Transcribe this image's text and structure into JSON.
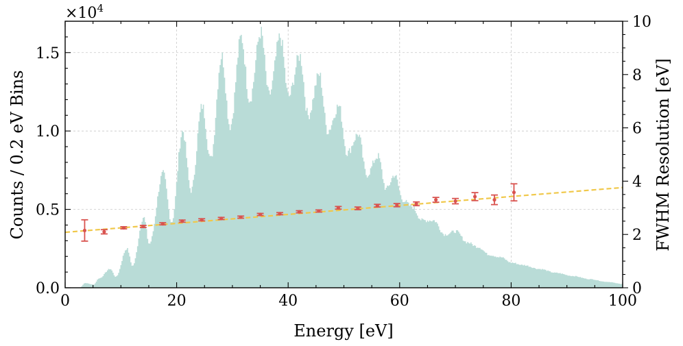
{
  "chart_data": {
    "type": "histogram+errorbar",
    "xlabel": "Energy [eV]",
    "ylabel": "Counts / 0.2 eV Bins",
    "y2label": "FWHM Resolution [eV]",
    "y_offset_label": "×10",
    "y_offset_exponent": "4",
    "xlim": [
      0,
      100
    ],
    "ylim": [
      0,
      17000
    ],
    "y2lim": [
      0,
      10
    ],
    "grid": true,
    "x_ticks": [
      0,
      20,
      40,
      60,
      80,
      100
    ],
    "y_ticks": [
      0,
      5000,
      10000,
      15000
    ],
    "y_tick_labels": [
      "0.0",
      "0.5",
      "1.0",
      "1.5"
    ],
    "y2_ticks": [
      0,
      2,
      4,
      6,
      8,
      10
    ],
    "histogram": {
      "color": "#b9dcd7",
      "bin_width": 0.2,
      "envelope": [
        [
          2.5,
          0
        ],
        [
          3.5,
          300
        ],
        [
          5,
          200
        ],
        [
          6,
          600
        ],
        [
          8,
          1200
        ],
        [
          9,
          700
        ],
        [
          11,
          2500
        ],
        [
          12,
          1400
        ],
        [
          14,
          4500
        ],
        [
          15,
          2800
        ],
        [
          17.5,
          7300
        ],
        [
          19,
          4200
        ],
        [
          21,
          10000
        ],
        [
          22.5,
          6200
        ],
        [
          24.5,
          11600
        ],
        [
          26,
          8200
        ],
        [
          28,
          14800
        ],
        [
          29.5,
          10300
        ],
        [
          31.5,
          16000
        ],
        [
          33,
          12000
        ],
        [
          35,
          16300
        ],
        [
          36.5,
          12300
        ],
        [
          38.5,
          16000
        ],
        [
          40,
          12200
        ],
        [
          42,
          14800
        ],
        [
          43.5,
          11000
        ],
        [
          45.5,
          13600
        ],
        [
          47,
          10000
        ],
        [
          49,
          11600
        ],
        [
          50.5,
          8600
        ],
        [
          52.5,
          9800
        ],
        [
          54,
          7200
        ],
        [
          56,
          8400
        ],
        [
          57.5,
          6300
        ],
        [
          59,
          7200
        ],
        [
          60.5,
          5600
        ],
        [
          62,
          5200
        ],
        [
          64,
          4300
        ],
        [
          66,
          4300
        ],
        [
          68,
          3400
        ],
        [
          70,
          3600
        ],
        [
          72,
          2900
        ],
        [
          74,
          2600
        ],
        [
          76,
          2100
        ],
        [
          78,
          1950
        ],
        [
          80,
          1600
        ],
        [
          82,
          1450
        ],
        [
          85,
          1200
        ],
        [
          88,
          950
        ],
        [
          91,
          750
        ],
        [
          94,
          550
        ],
        [
          97,
          380
        ],
        [
          100,
          240
        ]
      ]
    },
    "series": [
      {
        "type": "errorbar",
        "axis": "right",
        "color": "#d9534f",
        "x": [
          3.5,
          7,
          10.5,
          14,
          17.5,
          21,
          24.5,
          28,
          31.5,
          35,
          38.5,
          42,
          45.5,
          49,
          52.5,
          56,
          59.5,
          63,
          66.5,
          70,
          73.5,
          77,
          80.5
        ],
        "y": [
          2.15,
          2.1,
          2.25,
          2.3,
          2.4,
          2.5,
          2.55,
          2.6,
          2.65,
          2.75,
          2.78,
          2.85,
          2.88,
          3.0,
          2.98,
          3.08,
          3.1,
          3.15,
          3.3,
          3.25,
          3.42,
          3.3,
          3.58
        ],
        "yerr": [
          0.4,
          0.08,
          0.04,
          0.04,
          0.04,
          0.04,
          0.04,
          0.04,
          0.04,
          0.04,
          0.04,
          0.04,
          0.04,
          0.05,
          0.05,
          0.05,
          0.06,
          0.07,
          0.09,
          0.1,
          0.15,
          0.18,
          0.32
        ]
      },
      {
        "type": "line",
        "axis": "right",
        "style": "dashed",
        "color": "#f0c84a",
        "x": [
          0,
          100
        ],
        "y": [
          2.08,
          3.76
        ]
      }
    ]
  }
}
